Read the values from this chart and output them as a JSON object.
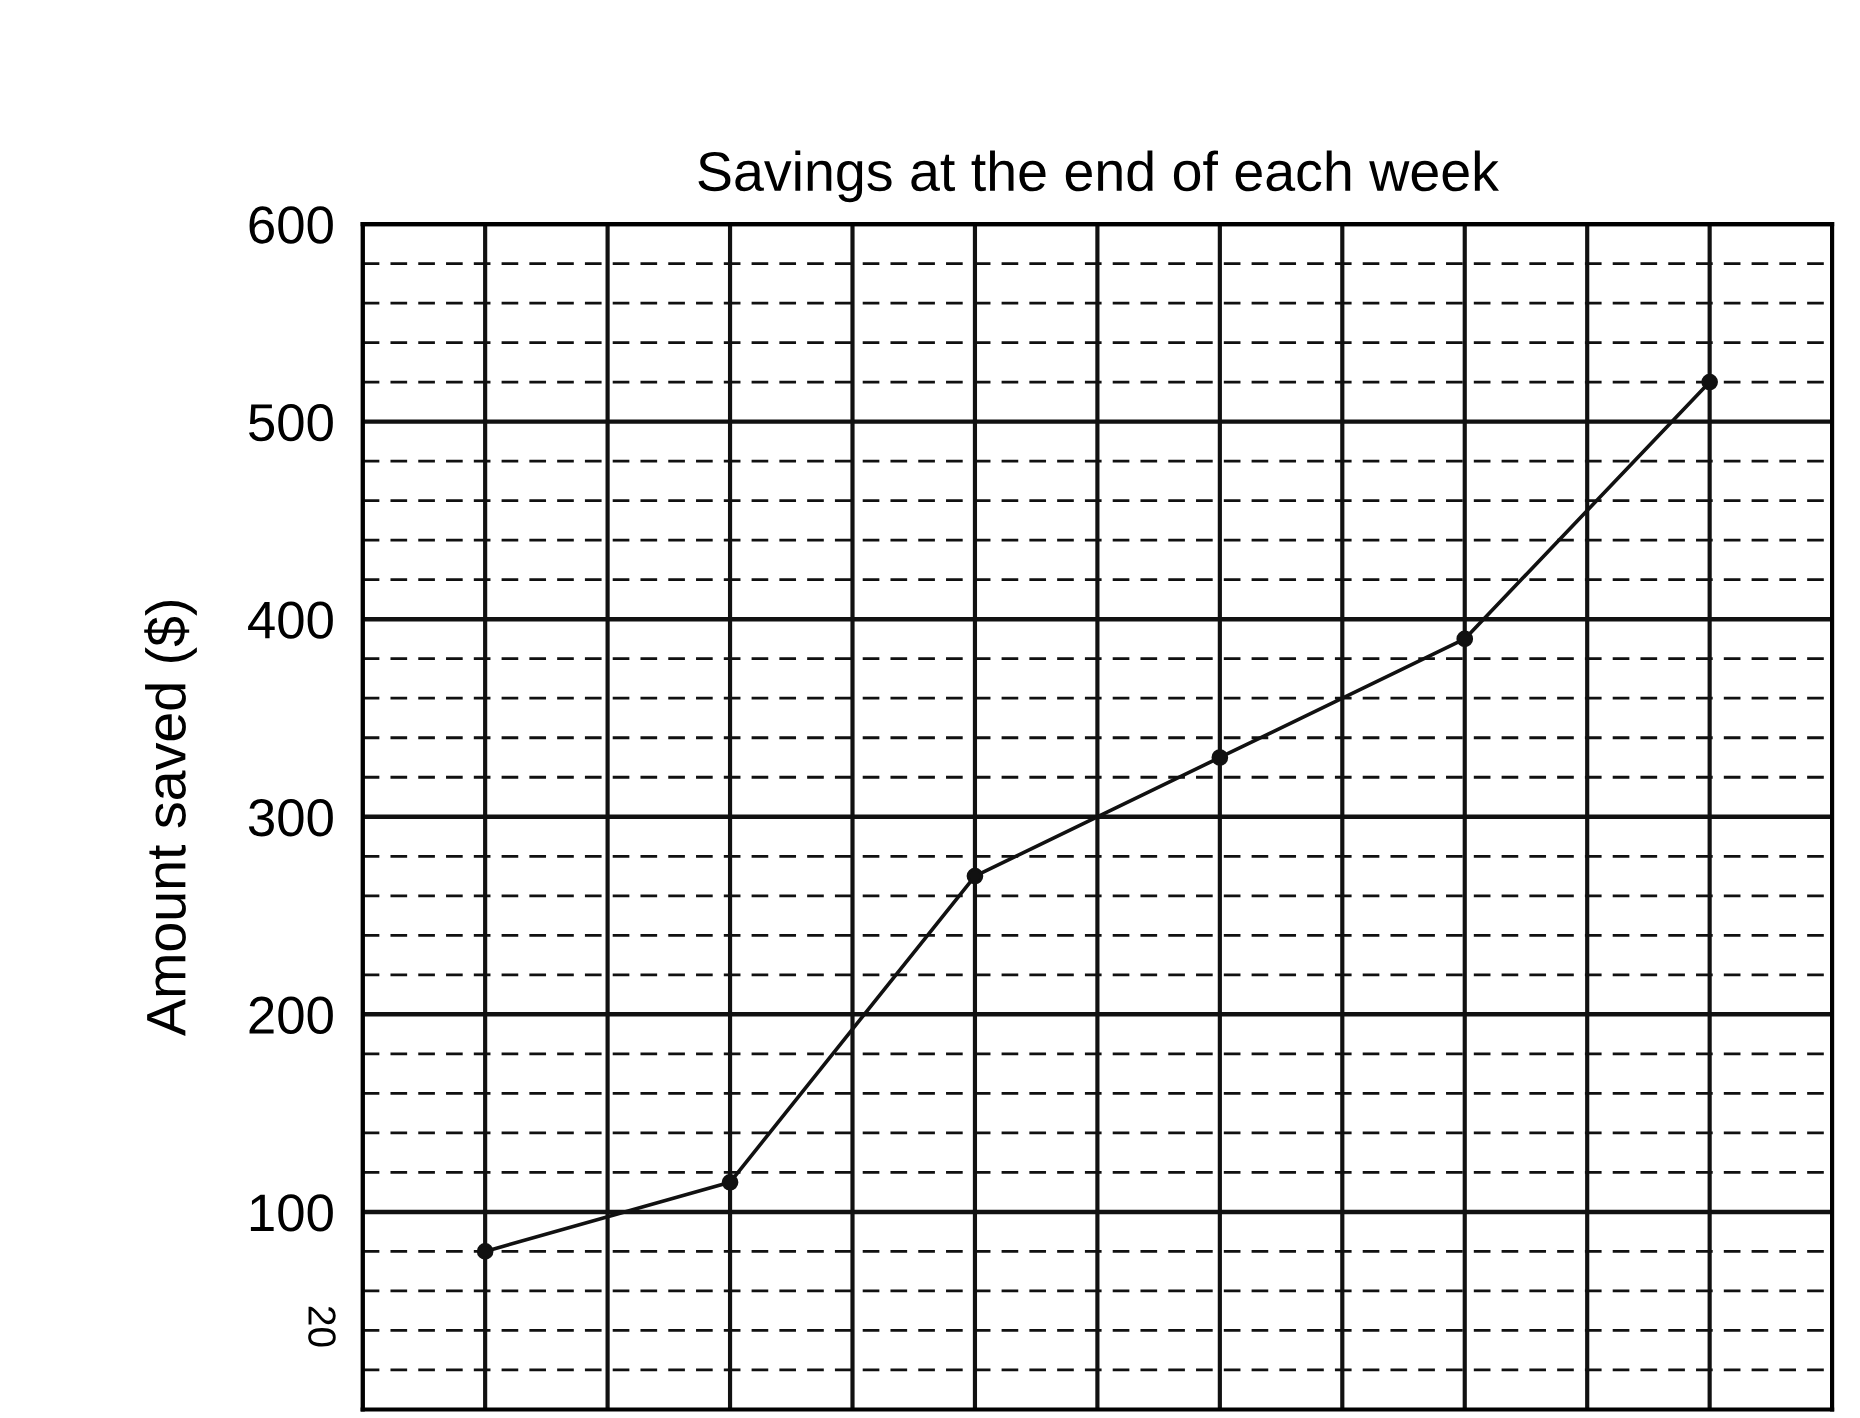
{
  "chart_data": {
    "type": "line",
    "title": "Savings at the end of each week",
    "ylabel": "Amount saved ($)",
    "categories": [
      null,
      null,
      null,
      null,
      null,
      null
    ],
    "series": [
      {
        "color": "#111111",
        "values": [
          80,
          115,
          270,
          330,
          390,
          520
        ]
      }
    ],
    "ylim": [
      0,
      600
    ],
    "yticks": [
      {
        "value": 20,
        "label": null
      },
      {
        "value": 40,
        "label": null
      },
      {
        "value": 60,
        "label": null
      },
      {
        "value": 80,
        "label": null
      },
      100,
      {
        "value": 120,
        "label": null
      },
      {
        "value": 140,
        "label": null
      },
      {
        "value": 160,
        "label": null
      },
      {
        "value": 180,
        "label": null
      },
      200,
      {
        "value": 220,
        "label": null
      },
      {
        "value": 240,
        "label": null
      },
      {
        "value": 260,
        "label": null
      },
      {
        "value": 280,
        "label": null
      },
      300,
      {
        "value": 320,
        "label": null
      },
      {
        "value": 340,
        "label": null
      },
      {
        "value": 360,
        "label": null
      },
      {
        "value": 380,
        "label": null
      },
      400,
      {
        "value": 420,
        "label": null
      },
      {
        "value": 440,
        "label": null
      },
      {
        "value": 460,
        "label": null
      },
      {
        "value": 480,
        "label": null
      },
      500,
      {
        "value": 520,
        "label": null
      },
      {
        "value": 540,
        "label": null
      },
      {
        "value": 560,
        "label": null
      },
      {
        "value": 580,
        "label": null
      },
      600
    ],
    "grid": true,
    "marker": "circle",
    "line_style": "solid",
    "legend": false,
    "annotations": [
      "20"
    ]
  }
}
